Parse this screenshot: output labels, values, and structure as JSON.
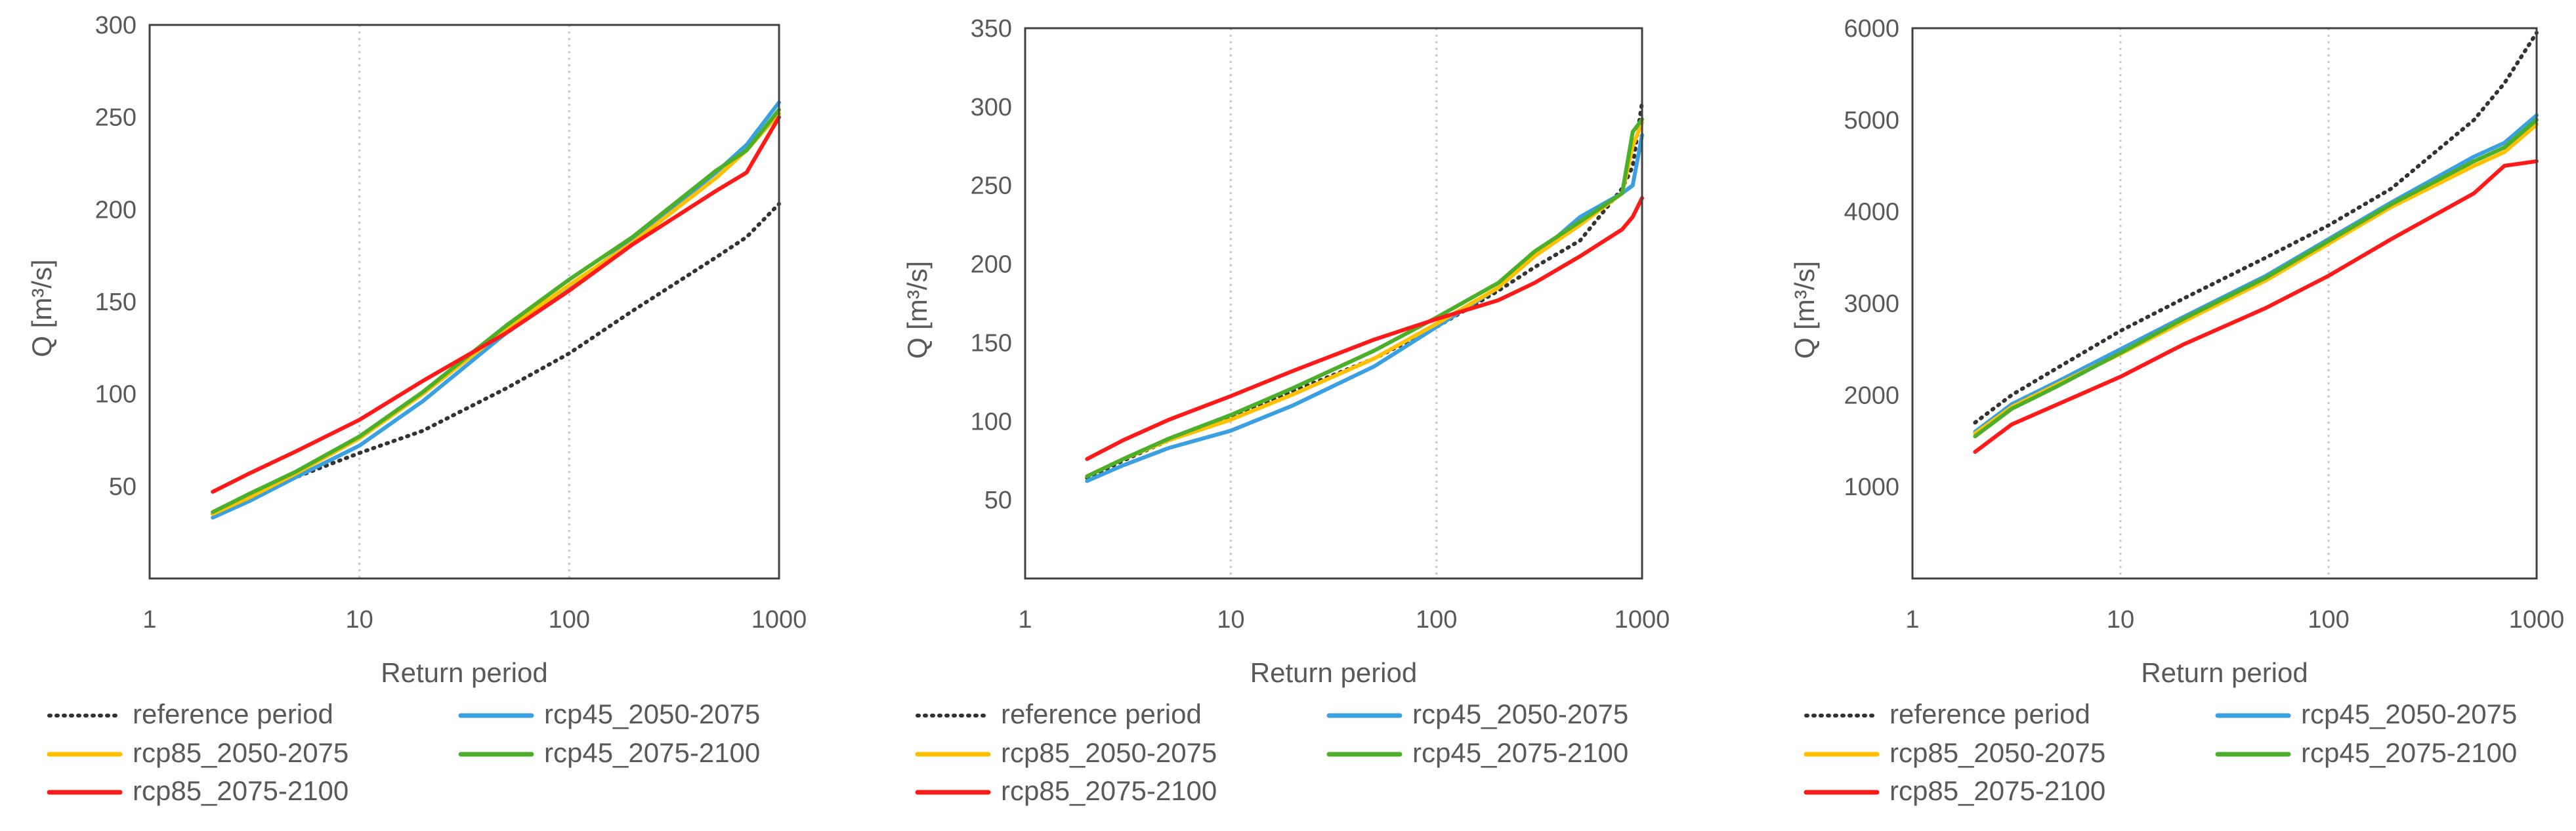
{
  "colors": {
    "reference period": "#333333",
    "rcp45_2050-2075": "#3aa0e0",
    "rcp85_2050-2075": "#ffc000",
    "rcp45_2075-2100": "#4caf2a",
    "rcp85_2075-2100": "#ff1a1a"
  },
  "chart_data": [
    {
      "type": "line",
      "xscale": "log",
      "xlim": [
        1,
        1000
      ],
      "ylim": [
        0,
        300
      ],
      "xlabel": "Return period",
      "ylabel": "Q [m³/s]",
      "xticks": [
        "1",
        "10",
        "100",
        "1000"
      ],
      "yticks": [
        "50",
        "100",
        "150",
        "200",
        "250",
        "300"
      ],
      "grid": "vertical dotted at 10 and 100",
      "legend": "bottom, two columns",
      "x": [
        2,
        3,
        5,
        10,
        20,
        50,
        100,
        200,
        500,
        700,
        1000
      ],
      "series": [
        {
          "name": "reference period",
          "style": "dotted",
          "values": [
            35,
            44,
            55,
            68,
            80,
            103,
            122,
            145,
            174,
            185,
            203
          ]
        },
        {
          "name": "rcp45_2050-2075",
          "values": [
            33,
            42,
            55,
            72,
            96,
            133,
            158,
            183,
            220,
            235,
            258
          ]
        },
        {
          "name": "rcp85_2050-2075",
          "values": [
            35,
            44,
            57,
            76,
            100,
            135,
            159,
            182,
            217,
            232,
            252
          ]
        },
        {
          "name": "rcp45_2075-2100",
          "values": [
            36,
            46,
            58,
            77,
            101,
            137,
            162,
            185,
            221,
            232,
            254
          ]
        },
        {
          "name": "rcp85_2075-2100",
          "values": [
            47,
            57,
            69,
            86,
            107,
            133,
            156,
            181,
            210,
            220,
            250
          ]
        }
      ]
    },
    {
      "type": "line",
      "xscale": "log",
      "xlim": [
        1,
        1000
      ],
      "ylim": [
        0,
        350
      ],
      "xlabel": "Return period",
      "ylabel": "Q [m³/s]",
      "xticks": [
        "1",
        "10",
        "100",
        "1000"
      ],
      "yticks": [
        "50",
        "100",
        "150",
        "200",
        "250",
        "300",
        "350"
      ],
      "grid": "vertical dotted at 10 and 100",
      "legend": "bottom, two columns",
      "x": [
        2,
        3,
        5,
        10,
        20,
        50,
        100,
        200,
        300,
        500,
        800,
        900,
        1000
      ],
      "series": [
        {
          "name": "reference period",
          "style": "dotted",
          "values": [
            64,
            75,
            88,
            102,
            119,
            140,
            160,
            183,
            198,
            215,
            248,
            262,
            303
          ]
        },
        {
          "name": "rcp45_2050-2075",
          "values": [
            62,
            72,
            83,
            94,
            110,
            135,
            160,
            185,
            205,
            230,
            245,
            250,
            282
          ]
        },
        {
          "name": "rcp85_2050-2075",
          "values": [
            65,
            76,
            88,
            101,
            117,
            140,
            162,
            185,
            205,
            225,
            245,
            275,
            290
          ]
        },
        {
          "name": "rcp45_2075-2100",
          "values": [
            65,
            76,
            89,
            104,
            121,
            145,
            166,
            188,
            208,
            227,
            245,
            284,
            292
          ]
        },
        {
          "name": "rcp85_2075-2100",
          "values": [
            76,
            88,
            101,
            116,
            132,
            152,
            165,
            177,
            188,
            205,
            222,
            230,
            242
          ]
        }
      ]
    },
    {
      "type": "line",
      "xscale": "log",
      "xlim": [
        1,
        1000
      ],
      "ylim": [
        0,
        6000
      ],
      "xlabel": "Return period",
      "ylabel": "Q [m³/s]",
      "xticks": [
        "1",
        "10",
        "100",
        "1000"
      ],
      "yticks": [
        "1000",
        "2000",
        "3000",
        "4000",
        "5000",
        "6000"
      ],
      "grid": "vertical dotted at 10 and 100",
      "legend": "bottom, two columns",
      "x": [
        2,
        3,
        5,
        10,
        20,
        50,
        100,
        200,
        500,
        700,
        1000
      ],
      "series": [
        {
          "name": "reference period",
          "style": "dotted",
          "values": [
            1700,
            2000,
            2300,
            2700,
            3050,
            3500,
            3850,
            4250,
            5000,
            5400,
            5950
          ]
        },
        {
          "name": "rcp45_2050-2075",
          "values": [
            1600,
            1900,
            2150,
            2500,
            2850,
            3300,
            3700,
            4100,
            4600,
            4750,
            5050
          ]
        },
        {
          "name": "rcp85_2050-2075",
          "values": [
            1580,
            1870,
            2120,
            2450,
            2800,
            3250,
            3650,
            4050,
            4500,
            4650,
            4950
          ]
        },
        {
          "name": "rcp45_2075-2100",
          "values": [
            1550,
            1850,
            2100,
            2460,
            2830,
            3280,
            3680,
            4080,
            4550,
            4700,
            5000
          ]
        },
        {
          "name": "rcp85_2075-2100",
          "values": [
            1380,
            1680,
            1900,
            2200,
            2550,
            2950,
            3300,
            3700,
            4200,
            4500,
            4550
          ]
        }
      ]
    }
  ],
  "legend_entries": [
    "reference period",
    "rcp45_2050-2075",
    "rcp85_2050-2075",
    "rcp45_2075-2100",
    "rcp85_2075-2100"
  ]
}
